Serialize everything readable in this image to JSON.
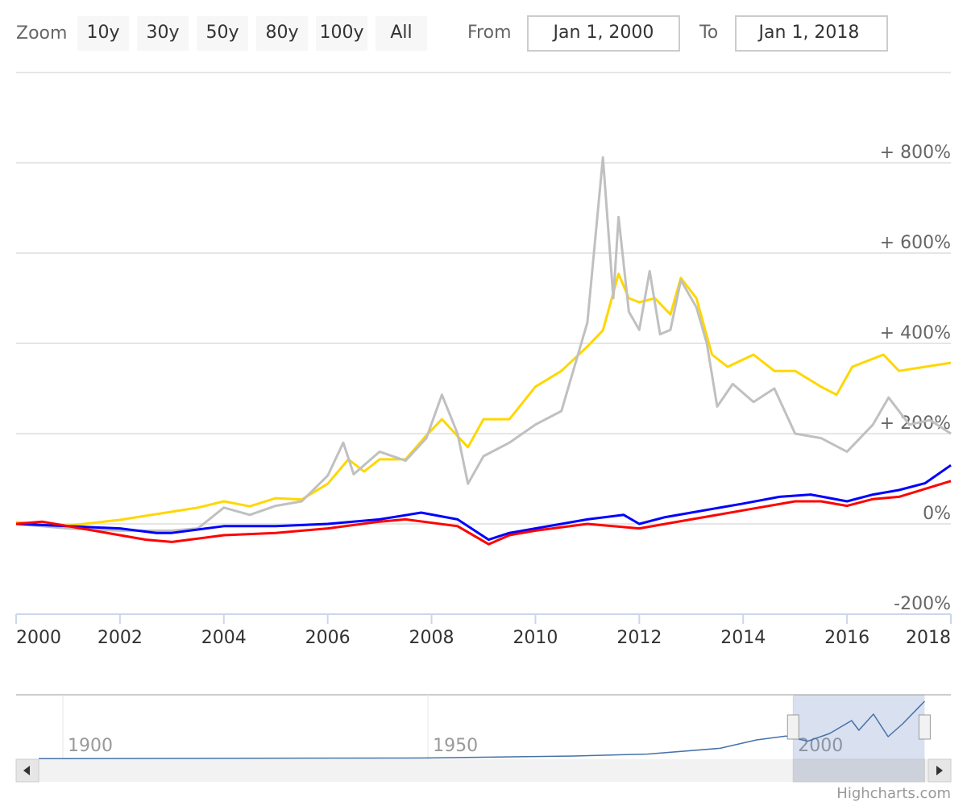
{
  "range_selector": {
    "zoom_label": "Zoom",
    "buttons": [
      "10y",
      "30y",
      "50y",
      "80y",
      "100y",
      "All"
    ],
    "from_label": "From",
    "from": "Jan 1, 2000",
    "to_label": "To",
    "to": "Jan 1, 2018"
  },
  "credits": "Highcharts.com",
  "chart_data": [
    {
      "type": "line",
      "xlim": [
        2000,
        2018
      ],
      "xticks": [
        2000,
        2002,
        2004,
        2006,
        2008,
        2010,
        2012,
        2014,
        2016,
        2018
      ],
      "ylim": [
        -200,
        1000
      ],
      "yticks": [
        {
          "value": -200,
          "label": "-200%"
        },
        {
          "value": 0,
          "label": "0%"
        },
        {
          "value": 200,
          "label": "+ 200%"
        },
        {
          "value": 400,
          "label": "+ 400%"
        },
        {
          "value": 600,
          "label": "+ 600%"
        },
        {
          "value": 800,
          "label": "+ 800%"
        }
      ],
      "grid": true,
      "series": [
        {
          "color": "#ffd700",
          "x": [
            2000,
            2001,
            2002,
            2002.5,
            2003,
            2003.5,
            2004,
            2004.5,
            2005,
            2005.5,
            2006,
            2006.4,
            2006.7,
            2007,
            2007.5,
            2007.9,
            2008.2,
            2008.7,
            2009,
            2009.5,
            2010,
            2010.5,
            2011,
            2011.3,
            2011.6,
            2011.8,
            2012,
            2012.3,
            2012.6,
            2012.8,
            2013.1,
            2013.4,
            2013.7,
            2014.2,
            2014.6,
            2015,
            2015.5,
            2015.8,
            2016.1,
            2016.7,
            2017,
            2017.5,
            2018
          ],
          "values": [
            4,
            -4,
            9,
            18,
            27,
            36,
            50,
            39,
            57,
            54,
            89,
            143,
            116,
            143,
            143,
            196,
            232,
            170,
            232,
            232,
            304,
            339,
            393,
            429,
            554,
            500,
            491,
            500,
            464,
            545,
            500,
            375,
            348,
            375,
            339,
            339,
            304,
            286,
            348,
            375,
            339,
            348,
            357
          ]
        },
        {
          "color": "#c0c0c0",
          "x": [
            2000,
            2001,
            2002,
            2003,
            2003.5,
            2004,
            2004.5,
            2005,
            2005.5,
            2006,
            2006.3,
            2006.5,
            2007,
            2007.5,
            2007.9,
            2008.2,
            2008.5,
            2008.7,
            2009,
            2009.5,
            2010,
            2010.5,
            2011,
            2011.3,
            2011.5,
            2011.6,
            2011.8,
            2012,
            2012.2,
            2012.4,
            2012.6,
            2012.8,
            2013.1,
            2013.3,
            2013.5,
            2013.8,
            2014.2,
            2014.6,
            2015,
            2015.5,
            2016,
            2016.5,
            2016.8,
            2017.2,
            2017.6,
            2018
          ],
          "values": [
            0,
            -10,
            -15,
            -15,
            -10,
            36,
            20,
            40,
            50,
            107,
            180,
            110,
            160,
            140,
            190,
            286,
            200,
            89,
            150,
            180,
            220,
            250,
            446,
            812,
            500,
            680,
            470,
            430,
            560,
            420,
            430,
            540,
            480,
            400,
            260,
            310,
            270,
            300,
            200,
            190,
            160,
            220,
            280,
            220,
            230,
            200
          ]
        },
        {
          "color": "#0000ff",
          "x": [
            2000,
            2001,
            2002,
            2002.7,
            2003,
            2004,
            2005,
            2006,
            2007,
            2007.8,
            2008.5,
            2009.1,
            2009.5,
            2010,
            2011,
            2011.7,
            2012,
            2012.5,
            2013,
            2014,
            2014.7,
            2015.3,
            2016,
            2016.5,
            2017,
            2017.5,
            2018
          ],
          "values": [
            0,
            -5,
            -10,
            -20,
            -20,
            -5,
            -5,
            0,
            10,
            25,
            10,
            -35,
            -20,
            -10,
            10,
            20,
            0,
            15,
            25,
            45,
            60,
            65,
            50,
            65,
            75,
            90,
            130
          ]
        },
        {
          "color": "#ff0000",
          "x": [
            2000,
            2000.5,
            2001.5,
            2002.5,
            2003,
            2004,
            2005,
            2006,
            2007,
            2007.5,
            2008.5,
            2009.1,
            2009.5,
            2010,
            2011,
            2012,
            2012.5,
            2013,
            2014,
            2015,
            2015.5,
            2016,
            2016.5,
            2017,
            2018
          ],
          "values": [
            0,
            5,
            -15,
            -35,
            -40,
            -25,
            -20,
            -10,
            5,
            10,
            -5,
            -45,
            -25,
            -15,
            0,
            -10,
            0,
            10,
            30,
            50,
            50,
            40,
            55,
            60,
            95
          ]
        }
      ]
    },
    {
      "type": "line",
      "xlim": [
        1893.6,
        2021.6
      ],
      "xticks": [
        1900,
        1950,
        2000
      ],
      "ylim": [
        0,
        100
      ],
      "series": [
        {
          "color": "#4572a7",
          "x": [
            1896.7,
            1900,
            1950,
            1970,
            1980,
            1990,
            1995,
            1999,
            2002,
            2005,
            2008,
            2009,
            2011,
            2013,
            2015,
            2018
          ],
          "values": [
            1,
            1,
            2,
            5,
            8,
            17,
            30,
            36,
            28,
            40,
            60,
            45,
            70,
            35,
            55,
            90
          ]
        }
      ]
    }
  ]
}
